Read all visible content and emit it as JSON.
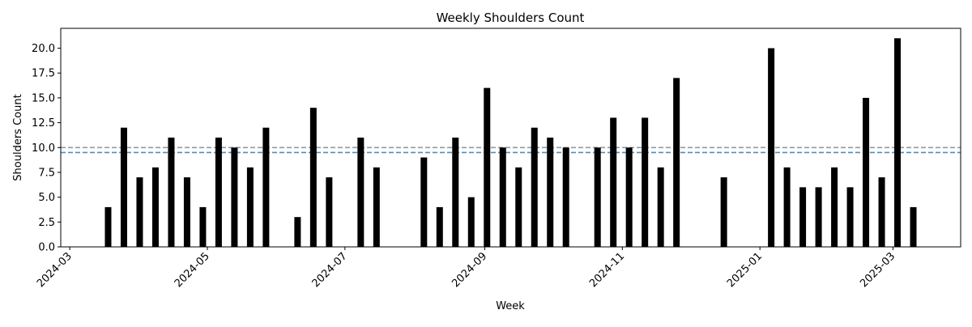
{
  "chart_data": {
    "type": "bar",
    "title": "Weekly Shoulders Count",
    "xlabel": "Week",
    "ylabel": "Shoulders Count",
    "x_axis_kind": "date",
    "xlim": [
      "2024-02-26",
      "2025-03-31"
    ],
    "ylim": [
      0,
      22
    ],
    "grid": false,
    "legend": "none",
    "bar_color": "#000000",
    "x_ticks": [
      "2024-03",
      "2024-05",
      "2024-07",
      "2024-09",
      "2024-11",
      "2025-01",
      "2025-03"
    ],
    "y_ticks": [
      "0.0",
      "2.5",
      "5.0",
      "7.5",
      "10.0",
      "12.5",
      "15.0",
      "17.5",
      "20.0"
    ],
    "reference_lines": [
      {
        "y": 10.0,
        "color": "#999999",
        "style": "dashed"
      },
      {
        "y": 9.5,
        "color": "#4a8fc2",
        "style": "dashed"
      }
    ],
    "weeks": [
      "2024-03-18",
      "2024-03-25",
      "2024-04-01",
      "2024-04-08",
      "2024-04-15",
      "2024-04-22",
      "2024-04-29",
      "2024-05-06",
      "2024-05-13",
      "2024-05-20",
      "2024-05-27",
      "2024-06-10",
      "2024-06-17",
      "2024-06-24",
      "2024-07-08",
      "2024-07-15",
      "2024-08-05",
      "2024-08-12",
      "2024-08-19",
      "2024-08-26",
      "2024-09-02",
      "2024-09-09",
      "2024-09-16",
      "2024-09-23",
      "2024-09-30",
      "2024-10-07",
      "2024-10-21",
      "2024-10-28",
      "2024-11-04",
      "2024-11-11",
      "2024-11-18",
      "2024-11-25",
      "2024-12-16",
      "2025-01-06",
      "2025-01-13",
      "2025-01-20",
      "2025-01-27",
      "2025-02-03",
      "2025-02-10",
      "2025-02-17",
      "2025-02-24",
      "2025-03-03",
      "2025-03-10"
    ],
    "values": [
      4,
      12,
      7,
      8,
      11,
      7,
      4,
      11,
      10,
      8,
      12,
      3,
      14,
      7,
      11,
      8,
      9,
      4,
      11,
      5,
      16,
      10,
      8,
      12,
      11,
      10,
      10,
      13,
      10,
      13,
      8,
      17,
      7,
      20,
      8,
      6,
      6,
      8,
      6,
      15,
      7,
      21,
      4
    ]
  }
}
